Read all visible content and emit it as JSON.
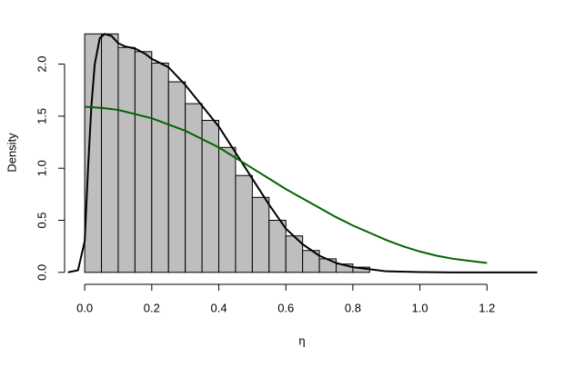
{
  "chart_data": {
    "type": "histogram",
    "x_label": "η",
    "y_label": "Density",
    "bins": [
      0,
      0.05,
      0.1,
      0.15,
      0.2,
      0.25,
      0.3,
      0.35,
      0.4,
      0.45,
      0.5,
      0.55,
      0.6,
      0.65,
      0.7,
      0.75,
      0.8,
      0.85
    ],
    "values": [
      2.29,
      2.29,
      2.16,
      2.12,
      2.01,
      1.83,
      1.62,
      1.46,
      1.2,
      0.93,
      0.72,
      0.5,
      0.35,
      0.21,
      0.13,
      0.08,
      0.05
    ],
    "color": "#bebebe",
    "lines": [
      {
        "color": "#000000",
        "x": [
          -0.05,
          -0.02,
          0,
          0.01,
          0.02,
          0.03,
          0.045,
          0.06,
          0.08,
          0.1,
          0.12,
          0.15,
          0.18,
          0.2,
          0.25,
          0.3,
          0.35,
          0.4,
          0.45,
          0.5,
          0.55,
          0.6,
          0.65,
          0.7,
          0.75,
          0.8,
          0.85,
          0.9,
          1.0,
          1.1,
          1.35
        ],
        "values": [
          0,
          0.02,
          0.3,
          1.0,
          1.6,
          2.0,
          2.25,
          2.29,
          2.27,
          2.2,
          2.17,
          2.15,
          2.1,
          2.05,
          1.97,
          1.8,
          1.6,
          1.4,
          1.15,
          0.9,
          0.65,
          0.42,
          0.27,
          0.16,
          0.09,
          0.05,
          0.03,
          0.01,
          0.003,
          0,
          0
        ]
      },
      {
        "color": "#006400",
        "x": [
          0,
          0.05,
          0.1,
          0.15,
          0.2,
          0.25,
          0.3,
          0.35,
          0.4,
          0.45,
          0.5,
          0.55,
          0.6,
          0.65,
          0.7,
          0.75,
          0.8,
          0.85,
          0.9,
          0.95,
          1.0,
          1.05,
          1.1,
          1.15,
          1.2
        ],
        "values": [
          1.59,
          1.58,
          1.56,
          1.52,
          1.48,
          1.42,
          1.36,
          1.28,
          1.2,
          1.1,
          1.0,
          0.9,
          0.8,
          0.71,
          0.62,
          0.53,
          0.45,
          0.38,
          0.31,
          0.25,
          0.2,
          0.16,
          0.13,
          0.11,
          0.09
        ]
      }
    ],
    "xlim": [
      -0.06,
      1.37
    ],
    "ylim": [
      -0.08,
      2.38
    ],
    "xticks": [
      {
        "value": 0,
        "label": "0.0"
      },
      0.2,
      0.4,
      0.6,
      0.8,
      {
        "value": 1,
        "label": "1.0"
      },
      1.2
    ],
    "yticks": [
      {
        "value": 0,
        "label": "0.0"
      },
      0.5,
      {
        "value": 1,
        "label": "1.0"
      },
      1.5,
      {
        "value": 2,
        "label": "2.0"
      }
    ],
    "grid": false
  }
}
